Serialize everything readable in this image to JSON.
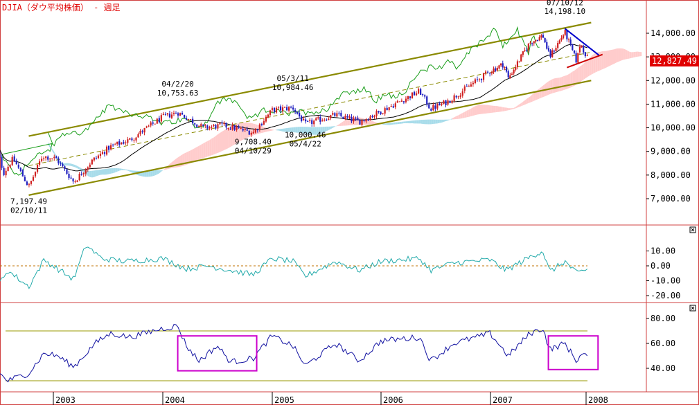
{
  "chart_data": [
    {
      "panel": "price",
      "type": "candlestick",
      "title": "DJIA（ダウ平均株価） - 週足",
      "x_ticks": [
        "2003",
        "2004",
        "2005",
        "2006",
        "2007",
        "2008"
      ],
      "y_ticks": [
        "14,000.00",
        "13,000.00",
        "12,000.00",
        "11,000.00",
        "10,000.00",
        "9,000.00",
        "8,000.00",
        "7,000.00"
      ],
      "ylim": [
        6100,
        14750
      ],
      "last_price": "12,827.49",
      "annotations": [
        {
          "label": "07/10/12",
          "value": "14,198.10",
          "date": "2007-10-12",
          "price": 14198.1,
          "kind": "high"
        },
        {
          "label": "04/2/20",
          "value": "10,753.63",
          "date": "2004-02-20",
          "price": 10753.63,
          "kind": "high"
        },
        {
          "label": "05/3/11",
          "value": "10,984.46",
          "date": "2005-03-11",
          "price": 10984.46,
          "kind": "high"
        },
        {
          "label": "04/10/29",
          "value": "9,708.40",
          "date": "2004-10-29",
          "price": 9708.4,
          "kind": "low"
        },
        {
          "label": "05/4/22",
          "value": "10,000.46",
          "date": "2005-04-22",
          "price": 10000.46,
          "kind": "low"
        },
        {
          "label": "02/10/11",
          "value": "7,197.49",
          "date": "2002-10-11",
          "price": 7197.49,
          "kind": "low"
        }
      ],
      "close_anchors": [
        [
          "2002-06-15",
          9500
        ],
        [
          "2002-07-20",
          8100
        ],
        [
          "2002-08-20",
          8700
        ],
        [
          "2002-10-11",
          7500
        ],
        [
          "2002-11-25",
          8800
        ],
        [
          "2003-01-10",
          8700
        ],
        [
          "2003-03-10",
          7700
        ],
        [
          "2003-05-10",
          8600
        ],
        [
          "2003-07-10",
          9200
        ],
        [
          "2003-09-15",
          9500
        ],
        [
          "2003-12-31",
          10450
        ],
        [
          "2004-02-20",
          10650
        ],
        [
          "2004-05-15",
          10000
        ],
        [
          "2004-07-20",
          10100
        ],
        [
          "2004-10-29",
          9800
        ],
        [
          "2005-01-01",
          10750
        ],
        [
          "2005-03-11",
          10850
        ],
        [
          "2005-04-22",
          10150
        ],
        [
          "2005-08-01",
          10550
        ],
        [
          "2005-10-20",
          10250
        ],
        [
          "2006-01-01",
          10700
        ],
        [
          "2006-05-10",
          11550
        ],
        [
          "2006-06-15",
          10800
        ],
        [
          "2006-08-10",
          11100
        ],
        [
          "2006-12-31",
          12400
        ],
        [
          "2007-02-20",
          12700
        ],
        [
          "2007-03-10",
          12100
        ],
        [
          "2007-05-31",
          13600
        ],
        [
          "2007-07-20",
          13900
        ],
        [
          "2007-08-15",
          13000
        ],
        [
          "2007-10-12",
          14050
        ],
        [
          "2007-11-26",
          12800
        ],
        [
          "2007-12-10",
          13600
        ],
        [
          "2008-01-10",
          12827
        ]
      ],
      "channel_lines": [
        {
          "name": "upper",
          "points": [
            [
              "2002-10-11",
              9650
            ],
            [
              "2008-01-18",
              14450
            ]
          ]
        },
        {
          "name": "mid",
          "points": [
            [
              "2002-10-11",
              8400
            ],
            [
              "2008-01-18",
              13200
            ]
          ]
        },
        {
          "name": "lower",
          "points": [
            [
              "2002-10-11",
              7150
            ],
            [
              "2008-01-18",
              12000
            ]
          ]
        }
      ],
      "triangle_lines": [
        {
          "name": "resistance",
          "points": [
            [
              "2007-10-12",
              14200
            ],
            [
              "2008-02-15",
              13050
            ]
          ]
        },
        {
          "name": "support",
          "points": [
            [
              "2007-10-20",
              12550
            ],
            [
              "2008-02-25",
              13100
            ]
          ]
        }
      ]
    },
    {
      "panel": "oscillator",
      "type": "line",
      "y_ticks": [
        "10.00",
        "0.00",
        "-10.00",
        "-20.00"
      ],
      "ylim": [
        -23,
        18
      ],
      "reference_line": 0,
      "anchors": [
        [
          "2002-06-15",
          -18
        ],
        [
          "2002-08-01",
          -3
        ],
        [
          "2002-10-11",
          -14
        ],
        [
          "2002-12-01",
          4
        ],
        [
          "2003-01-15",
          -2
        ],
        [
          "2003-03-10",
          -9
        ],
        [
          "2003-04-20",
          14
        ],
        [
          "2003-06-10",
          5
        ],
        [
          "2003-09-01",
          3
        ],
        [
          "2004-01-01",
          5
        ],
        [
          "2004-03-20",
          -2
        ],
        [
          "2004-06-01",
          0
        ],
        [
          "2004-08-15",
          -3
        ],
        [
          "2004-10-29",
          -6
        ],
        [
          "2005-01-01",
          5
        ],
        [
          "2005-03-11",
          3
        ],
        [
          "2005-04-22",
          -7
        ],
        [
          "2005-08-01",
          3
        ],
        [
          "2005-10-20",
          -3
        ],
        [
          "2006-01-01",
          3
        ],
        [
          "2006-05-10",
          5
        ],
        [
          "2006-06-15",
          -3
        ],
        [
          "2006-09-01",
          2
        ],
        [
          "2006-12-31",
          4
        ],
        [
          "2007-03-01",
          -3
        ],
        [
          "2007-06-01",
          6
        ],
        [
          "2007-07-20",
          10
        ],
        [
          "2007-08-15",
          -4
        ],
        [
          "2007-10-12",
          3
        ],
        [
          "2007-11-26",
          -5
        ],
        [
          "2008-01-10",
          -2
        ]
      ]
    },
    {
      "panel": "rsi",
      "type": "line",
      "y_ticks": [
        "80.00",
        "60.00",
        "40.00"
      ],
      "ylim": [
        25,
        90
      ],
      "levels": [
        70,
        30
      ],
      "anchors": [
        [
          "2002-06-15",
          40
        ],
        [
          "2002-08-01",
          30
        ],
        [
          "2002-10-11",
          36
        ],
        [
          "2002-12-01",
          52
        ],
        [
          "2003-01-15",
          50
        ],
        [
          "2003-03-10",
          41
        ],
        [
          "2003-05-20",
          60
        ],
        [
          "2003-07-10",
          68
        ],
        [
          "2003-09-15",
          65
        ],
        [
          "2003-12-31",
          72
        ],
        [
          "2004-02-20",
          74
        ],
        [
          "2004-03-20",
          58
        ],
        [
          "2004-05-01",
          46
        ],
        [
          "2004-07-01",
          58
        ],
        [
          "2004-08-15",
          45
        ],
        [
          "2004-10-29",
          48
        ],
        [
          "2004-12-31",
          66
        ],
        [
          "2005-03-11",
          58
        ],
        [
          "2005-04-22",
          42
        ],
        [
          "2005-08-01",
          60
        ],
        [
          "2005-10-20",
          46
        ],
        [
          "2006-01-01",
          62
        ],
        [
          "2006-05-10",
          65
        ],
        [
          "2006-06-15",
          46
        ],
        [
          "2006-09-01",
          60
        ],
        [
          "2006-12-31",
          68
        ],
        [
          "2007-03-10",
          50
        ],
        [
          "2007-05-31",
          68
        ],
        [
          "2007-07-20",
          72
        ],
        [
          "2007-08-15",
          55
        ],
        [
          "2007-10-12",
          60
        ],
        [
          "2007-11-26",
          46
        ],
        [
          "2007-12-20",
          52
        ],
        [
          "2008-01-10",
          47
        ]
      ],
      "highlight_boxes": [
        {
          "from": "2004-02-20",
          "to": "2004-11-10",
          "low": 38,
          "high": 66
        },
        {
          "from": "2007-08-10",
          "to": "2008-02-10",
          "low": 39,
          "high": 66
        }
      ]
    }
  ],
  "colors": {
    "accent_red": "#e00000",
    "border_red": "#d04040",
    "candle_up": "#d02020",
    "candle_down": "#2020c0",
    "channel": "#8a8a00",
    "lagging_span": "#1a9e1a",
    "base_line": "#000000",
    "cloud_bull": "#ffcccc",
    "cloud_bear": "#a8dcea",
    "triangle_resistance": "#0000cc",
    "triangle_support": "#cc0000",
    "oscillator_line": "#22aaaa",
    "zero_line": "#c07000",
    "rsi_line": "#1010a0",
    "rsi_levels": "#9a9a00",
    "highlight_box": "#cc00cc"
  }
}
